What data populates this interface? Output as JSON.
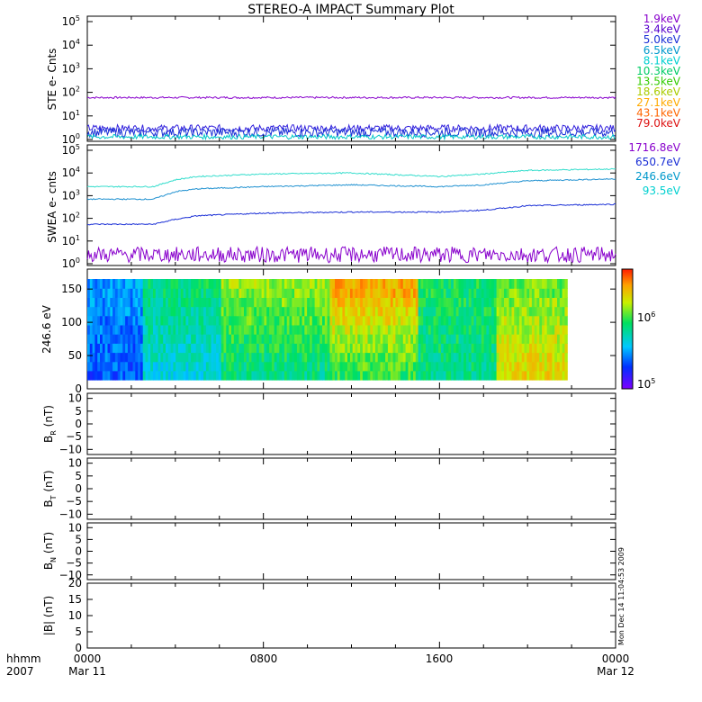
{
  "title": "STEREO-A IMPACT Summary Plot",
  "timestamp": "Mon Dec 14 11:04:53 2009",
  "x_axis": {
    "ticks": [
      "0000",
      "0800",
      "1600",
      "0000"
    ],
    "dates": [
      "Mar 11",
      "",
      "",
      "Mar 12"
    ],
    "corner_top": "hhmm",
    "corner_bottom": "2007"
  },
  "chart_data": [
    {
      "type": "line",
      "ylabel": "STE e- Cnts",
      "yscale": "log",
      "ylim": [
        1,
        100000
      ],
      "ytick_exponents": [
        "0",
        "1",
        "2",
        "3",
        "4",
        "5"
      ],
      "legend": [
        {
          "name": "1.9keV",
          "color": "#8800cc"
        },
        {
          "name": "3.4keV",
          "color": "#5500cc"
        },
        {
          "name": "5.0keV",
          "color": "#1a2fd6"
        },
        {
          "name": "6.5keV",
          "color": "#0099cc"
        },
        {
          "name": "8.1keV",
          "color": "#00d0d0"
        },
        {
          "name": "10.3keV",
          "color": "#00cc66"
        },
        {
          "name": "13.5keV",
          "color": "#33cc00"
        },
        {
          "name": "18.6keV",
          "color": "#aacc00"
        },
        {
          "name": "27.1keV",
          "color": "#ffaa00"
        },
        {
          "name": "43.1keV",
          "color": "#ff6600"
        },
        {
          "name": "79.0keV",
          "color": "#dd1111"
        }
      ],
      "series": [
        {
          "name": "1.9keV",
          "color": "#8800cc",
          "level": 60,
          "noise": 0.04
        },
        {
          "name": "3.4keV",
          "color": "#3322dd",
          "level": 3,
          "noise": 0.15
        },
        {
          "name": "5.0keV",
          "color": "#1a2fd6",
          "level": 2,
          "noise": 0.2
        },
        {
          "name": "6.5keV",
          "color": "#00c8c8",
          "level": 1.3,
          "noise": 0.1
        }
      ]
    },
    {
      "type": "line",
      "ylabel": "SWEA e- cnts",
      "yscale": "log",
      "ylim": [
        1,
        100000
      ],
      "ytick_exponents": [
        "0",
        "1",
        "2",
        "3",
        "4",
        "5"
      ],
      "legend": [
        {
          "name": "1716.8eV",
          "color": "#8800cc"
        },
        {
          "name": "650.7eV",
          "color": "#1a2fd6"
        },
        {
          "name": "246.6eV",
          "color": "#0099cc"
        },
        {
          "name": "93.5eV",
          "color": "#00d0d0"
        }
      ],
      "series": [
        {
          "name": "93.5eV",
          "color": "#33ddcc",
          "x": [
            0,
            3,
            4,
            5,
            8,
            12,
            16,
            18,
            20,
            24
          ],
          "y": [
            2500,
            2500,
            5000,
            7000,
            9000,
            10000,
            7000,
            9000,
            13000,
            15000
          ]
        },
        {
          "name": "246.6eV",
          "color": "#1e90d0",
          "x": [
            0,
            3,
            4,
            5,
            8,
            12,
            16,
            18,
            20,
            24
          ],
          "y": [
            700,
            700,
            1500,
            2000,
            2500,
            3000,
            2500,
            3000,
            4500,
            5500
          ]
        },
        {
          "name": "650.7eV",
          "color": "#1a2fd6",
          "x": [
            0,
            3,
            4,
            5,
            8,
            12,
            16,
            18,
            20,
            24
          ],
          "y": [
            55,
            55,
            90,
            130,
            170,
            190,
            190,
            230,
            360,
            420
          ]
        },
        {
          "name": "1716.8eV",
          "color": "#8800cc",
          "level": 2.5,
          "noise": 0.35
        }
      ]
    },
    {
      "type": "heatmap",
      "ylabel": "246.6 eV",
      "ylim": [
        0,
        180
      ],
      "yticks": [
        "0",
        "50",
        "100",
        "150"
      ],
      "colorbar_labels": [
        {
          "base": "10",
          "exp": "6"
        },
        {
          "base": "10",
          "exp": "5"
        }
      ]
    },
    {
      "type": "line",
      "ylabel": "B",
      "sub": "R",
      "unit": " (nT)",
      "ylim": [
        -12,
        12
      ],
      "yticks": [
        "10",
        "5",
        "0",
        "−5",
        "−10"
      ]
    },
    {
      "type": "line",
      "ylabel": "B",
      "sub": "T",
      "unit": " (nT)",
      "ylim": [
        -12,
        12
      ],
      "yticks": [
        "10",
        "5",
        "0",
        "−5",
        "−10"
      ]
    },
    {
      "type": "line",
      "ylabel": "B",
      "sub": "N",
      "unit": " (nT)",
      "ylim": [
        -12,
        12
      ],
      "yticks": [
        "10",
        "5",
        "0",
        "−5",
        "−10"
      ]
    },
    {
      "type": "line",
      "ylabel": "|B| (nT)",
      "ylim": [
        0,
        20
      ],
      "yticks": [
        "20",
        "15",
        "10",
        "5",
        "0"
      ]
    }
  ]
}
